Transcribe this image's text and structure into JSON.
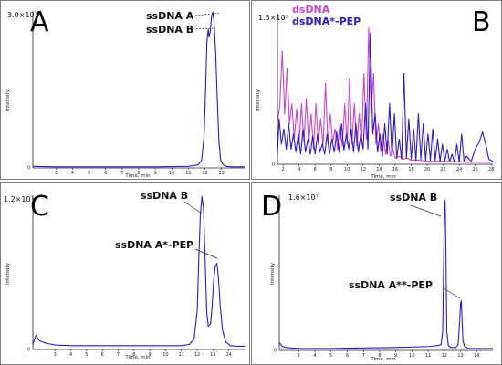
{
  "chart_data": [
    {
      "panel": "A",
      "type": "line",
      "ymax_label": "3.0×10⁷",
      "xlabel": "Time, min",
      "ylabel": "Intensity",
      "xlim": [
        1.6,
        14.4
      ],
      "ylim": [
        0,
        30000000.0
      ],
      "x_ticks": [
        3,
        4,
        5,
        6,
        7,
        8,
        9,
        10,
        11,
        12,
        13
      ],
      "annotations": [
        {
          "text": "ssDNA A",
          "x": 12.45,
          "y": 29500000.0,
          "style": "dashed"
        },
        {
          "text": "ssDNA B",
          "x": 12.2,
          "y": 25500000.0,
          "style": "dashed"
        }
      ],
      "series": [
        {
          "color": "#2a1ad6",
          "x": [
            1.6,
            3,
            5,
            7,
            9,
            10,
            11,
            11.6,
            11.8,
            11.95,
            12.05,
            12.12,
            12.2,
            12.25,
            12.32,
            12.4,
            12.48,
            12.55,
            12.65,
            12.75,
            12.85,
            12.95,
            13.1,
            13.3,
            13.6,
            14.4
          ],
          "y": [
            300000.0,
            200000.0,
            200000.0,
            200000.0,
            200000.0,
            250000.0,
            300000.0,
            600000.0,
            1500000.0,
            6000000.0,
            16000000.0,
            24000000.0,
            26500000.0,
            25000000.0,
            26000000.0,
            29000000.0,
            29800000.0,
            28000000.0,
            22000000.0,
            13000000.0,
            5000000.0,
            1500000.0,
            600000.0,
            300000.0,
            200000.0,
            200000.0
          ]
        }
      ]
    },
    {
      "panel": "B",
      "type": "line",
      "ymax_label": "1.5×10⁵",
      "xlabel": "Time, min",
      "ylabel": "Intensity",
      "xlim": [
        1.3,
        28.2
      ],
      "ylim": [
        0,
        150000.0
      ],
      "x_ticks": [
        2,
        4,
        6,
        8,
        10,
        12,
        14,
        16,
        18,
        20,
        22,
        24,
        26,
        28
      ],
      "legend": [
        {
          "label": "dsDNA",
          "color": "#cc44cc"
        },
        {
          "label": "dsDNA*-PEP",
          "color": "#2a1ad6"
        }
      ],
      "series": [
        {
          "name": "dsDNA",
          "color": "#cc44cc",
          "x": [
            1.3,
            1.6,
            1.9,
            2.2,
            2.5,
            2.8,
            3.1,
            3.4,
            3.7,
            4.0,
            4.3,
            4.6,
            4.9,
            5.2,
            5.5,
            5.8,
            6.1,
            6.4,
            6.7,
            7.0,
            7.3,
            7.6,
            7.9,
            8.2,
            8.5,
            8.8,
            9.1,
            9.4,
            9.7,
            10.0,
            10.3,
            10.6,
            10.9,
            11.2,
            11.5,
            11.8,
            12.1,
            12.4,
            12.7,
            13.0,
            13.3,
            13.6,
            13.9,
            14.2,
            14.5,
            14.8,
            15.1,
            15.4,
            15.7,
            16.0,
            16.5,
            17.0,
            17.5,
            18.0,
            19.0,
            20.0,
            21.0,
            22.0,
            23.0,
            24.0,
            25.0,
            26.0,
            27.0,
            28.2
          ],
          "y": [
            40000.0,
            60000.0,
            112000.0,
            50000.0,
            95000.0,
            40000.0,
            60000.0,
            25000.0,
            55000.0,
            20000.0,
            60000.0,
            22000.0,
            65000.0,
            20000.0,
            50000.0,
            15000.0,
            60000.0,
            20000.0,
            45000.0,
            18000.0,
            80000.0,
            20000.0,
            50000.0,
            22000.0,
            35000.0,
            15000.0,
            40000.0,
            18000.0,
            60000.0,
            20000.0,
            85000.0,
            20000.0,
            60000.0,
            18000.0,
            50000.0,
            20000.0,
            90000.0,
            25000.0,
            135000.0,
            50000.0,
            90000.0,
            20000.0,
            40000.0,
            12000.0,
            30000.0,
            10000.0,
            25000.0,
            8000.0,
            15000.0,
            6000.0,
            8000.0,
            5000.0,
            6000.0,
            4000.0,
            4000.0,
            3000.0,
            3000.0,
            3000.0,
            2500.0,
            2500.0,
            2000.0,
            2000.0,
            2000.0,
            2000.0
          ]
        },
        {
          "name": "dsDNA*-PEP",
          "color": "#2a1ad6",
          "x": [
            1.3,
            1.5,
            1.8,
            2.1,
            2.4,
            2.7,
            3.0,
            3.3,
            3.6,
            3.9,
            4.2,
            4.5,
            4.8,
            5.1,
            5.4,
            5.7,
            6.0,
            6.3,
            6.6,
            6.9,
            7.2,
            7.5,
            7.8,
            8.1,
            8.4,
            8.7,
            9.0,
            9.3,
            9.6,
            9.9,
            10.2,
            10.5,
            10.8,
            11.1,
            11.4,
            11.7,
            12.0,
            12.3,
            12.6,
            12.9,
            13.2,
            13.5,
            13.8,
            14.1,
            14.4,
            14.7,
            15.0,
            15.3,
            15.6,
            15.9,
            16.2,
            16.5,
            16.8,
            17.1,
            17.4,
            17.7,
            18.0,
            18.3,
            18.6,
            18.9,
            19.2,
            19.5,
            19.8,
            20.1,
            20.4,
            20.7,
            21.0,
            21.3,
            21.6,
            21.9,
            22.2,
            22.5,
            22.8,
            23.1,
            23.4,
            23.7,
            24.0,
            24.3,
            24.6,
            24.9,
            25.5,
            26.0,
            26.5,
            26.9,
            27.3,
            27.7,
            28.2
          ],
          "y": [
            10000.0,
            45000.0,
            20000.0,
            35000.0,
            15000.0,
            40000.0,
            15000.0,
            30000.0,
            12000.0,
            30000.0,
            10000.0,
            35000.0,
            12000.0,
            25000.0,
            10000.0,
            28000.0,
            10000.0,
            30000.0,
            12000.0,
            20000.0,
            10000.0,
            30000.0,
            10000.0,
            25000.0,
            12000.0,
            32000.0,
            12000.0,
            40000.0,
            14000.0,
            30000.0,
            15000.0,
            35000.0,
            12000.0,
            40000.0,
            12000.0,
            30000.0,
            15000.0,
            60000.0,
            15000.0,
            130000.0,
            30000.0,
            50000.0,
            12000.0,
            30000.0,
            8000.0,
            40000.0,
            10000.0,
            60000.0,
            8000.0,
            50000.0,
            6000.0,
            25000.0,
            5000.0,
            90000.0,
            6000.0,
            45000.0,
            5000.0,
            35000.0,
            4000.0,
            50000.0,
            5000.0,
            40000.0,
            4000.0,
            30000.0,
            4000.0,
            35000.0,
            4000.0,
            25000.0,
            3000.0,
            20000.0,
            3000.0,
            15000.0,
            2500.0,
            10000.0,
            2000.0,
            20000.0,
            2000.0,
            30000.0,
            3000.0,
            8000.0,
            3000.0,
            15000.0,
            22000.0,
            32000.0,
            20000.0,
            5000.0,
            3000.0
          ]
        }
      ]
    },
    {
      "panel": "C",
      "type": "line",
      "ymax_label": "1.2×10⁷",
      "xlabel": "Time, min",
      "ylabel": "Intensity",
      "xlim": [
        1.6,
        15.0
      ],
      "ylim": [
        0,
        12000000.0
      ],
      "x_ticks": [
        3,
        4,
        5,
        6,
        7,
        8,
        9,
        10,
        11,
        12,
        13,
        14
      ],
      "annotations": [
        {
          "text": "ssDNA B",
          "x": 12.3,
          "y": 11900000.0,
          "style": "solid"
        },
        {
          "text": "ssDNA A*-PEP",
          "x": 13.2,
          "y": 7200000.0,
          "style": "solid"
        }
      ],
      "series": [
        {
          "color": "#2a1ad6",
          "x": [
            1.6,
            1.8,
            2.0,
            2.4,
            2.8,
            3.0,
            4,
            5,
            6,
            7,
            8,
            9,
            10,
            11,
            11.5,
            11.8,
            12.0,
            12.1,
            12.2,
            12.3,
            12.4,
            12.5,
            12.6,
            12.7,
            12.85,
            12.95,
            13.05,
            13.15,
            13.25,
            13.35,
            13.45,
            13.6,
            13.8,
            14.1,
            14.5,
            15.0
          ],
          "y": [
            400000.0,
            1100000.0,
            700000.0,
            500000.0,
            400000.0,
            350000.0,
            300000.0,
            300000.0,
            300000.0,
            300000.0,
            300000.0,
            300000.0,
            300000.0,
            300000.0,
            400000.0,
            800000.0,
            3000000.0,
            7000000.0,
            10500000.0,
            11900000.0,
            11000000.0,
            7000000.0,
            3000000.0,
            1800000.0,
            2000000.0,
            3500000.0,
            5500000.0,
            6500000.0,
            6700000.0,
            5500000.0,
            3500000.0,
            1500000.0,
            600000.0,
            300000.0,
            250000.0,
            250000.0
          ]
        }
      ]
    },
    {
      "panel": "D",
      "type": "line",
      "ymax_label": "1.6×10⁷",
      "xlabel": "Time, min",
      "ylabel": "Intensity",
      "xlim": [
        1.8,
        15.0
      ],
      "ylim": [
        0,
        16000000.0
      ],
      "x_ticks": [
        3,
        4,
        5,
        6,
        7,
        8,
        9,
        10,
        11,
        12,
        13,
        14
      ],
      "annotations": [
        {
          "text": "ssDNA B",
          "x": 12.05,
          "y": 15500000.0,
          "style": "solid"
        },
        {
          "text": "ssDNA A**-PEP",
          "x": 13.05,
          "y": 5100000.0,
          "style": "solid"
        }
      ],
      "series": [
        {
          "color": "#2a1ad6",
          "x": [
            1.8,
            2.0,
            2.2,
            3,
            5,
            7,
            9,
            11,
            11.6,
            11.8,
            11.9,
            11.95,
            12.0,
            12.05,
            12.1,
            12.15,
            12.25,
            12.4,
            12.7,
            12.85,
            12.95,
            13.0,
            13.05,
            13.1,
            13.15,
            13.25,
            13.5,
            14,
            15.0
          ],
          "y": [
            800000.0,
            400000.0,
            300000.0,
            200000.0,
            200000.0,
            250000.0,
            300000.0,
            400000.0,
            500000.0,
            600000.0,
            2000000.0,
            8000000.0,
            14000000.0,
            15500000.0,
            10000000.0,
            2000000.0,
            500000.0,
            300000.0,
            300000.0,
            600000.0,
            3000000.0,
            4800000.0,
            5100000.0,
            3000000.0,
            1000000.0,
            400000.0,
            200000.0,
            200000.0,
            200000.0
          ]
        }
      ]
    }
  ]
}
